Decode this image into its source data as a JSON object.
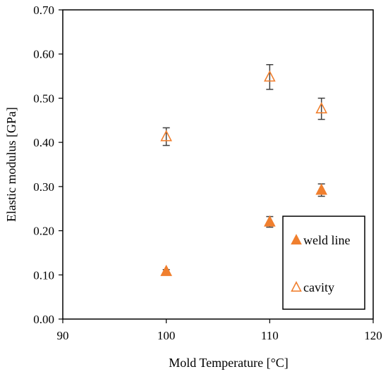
{
  "chart_data": {
    "type": "scatter",
    "title": "",
    "xlabel": "Mold Temperature [°C]",
    "ylabel": "Elastic modulus [GPa]",
    "xlim": [
      90,
      120
    ],
    "ylim": [
      0.0,
      0.7
    ],
    "xticks": [
      90,
      100,
      110,
      120
    ],
    "yticks": [
      0.0,
      0.1,
      0.2,
      0.3,
      0.4,
      0.5,
      0.6,
      0.7
    ],
    "xtick_labels": [
      "90",
      "100",
      "110",
      "120"
    ],
    "ytick_labels": [
      "0.00",
      "0.10",
      "0.20",
      "0.30",
      "0.40",
      "0.50",
      "0.60",
      "0.70"
    ],
    "grid": false,
    "legend_placement": "bottom-right",
    "series": [
      {
        "name": "weld line",
        "marker": "filled-triangle",
        "color": "#F07F2E",
        "x": [
          100,
          110,
          115
        ],
        "y": [
          0.108,
          0.22,
          0.292
        ],
        "error": [
          0.004,
          0.012,
          0.014
        ]
      },
      {
        "name": "cavity",
        "marker": "open-triangle",
        "color": "#F07F2E",
        "x": [
          100,
          110,
          115
        ],
        "y": [
          0.413,
          0.548,
          0.476
        ],
        "error": [
          0.02,
          0.028,
          0.024
        ]
      }
    ],
    "error_bar_color": "#404040"
  }
}
